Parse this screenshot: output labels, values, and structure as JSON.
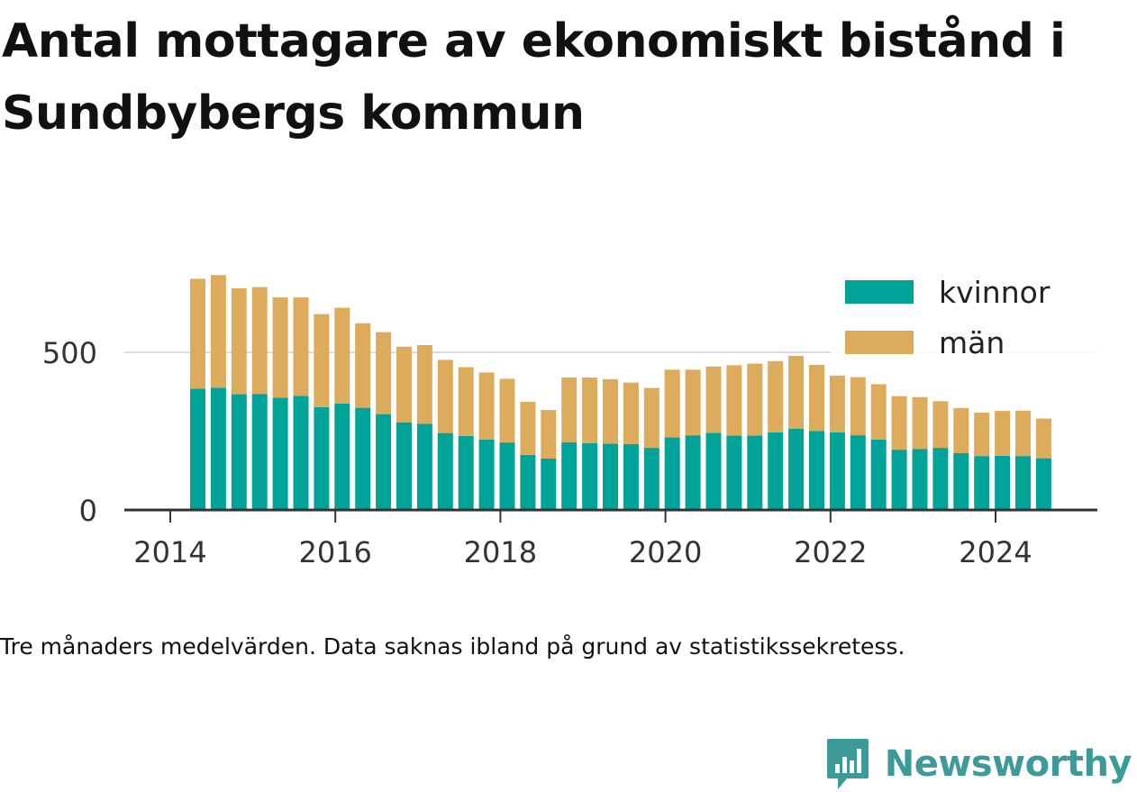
{
  "header": {
    "title": "Antal mottagare av ekonomiskt bistånd i Sundbybergs kommun"
  },
  "footer": {
    "caption": "Tre månaders medelvärden. Data saknas ibland på grund av statistikssekretess.",
    "brand": "Newsworthy"
  },
  "colors": {
    "kvinnor": "#00a398",
    "man": "#dcab5c",
    "axis": "#333333",
    "grid": "#dddddd",
    "brand": "#3d9a98"
  },
  "chart_data": {
    "type": "bar",
    "stacked": true,
    "x_tick_labels": [
      "2014",
      "2016",
      "2018",
      "2020",
      "2022",
      "2024"
    ],
    "y_tick_labels": [
      "0",
      "500"
    ],
    "y_gridlines": [
      500
    ],
    "ylim": [
      0,
      750
    ],
    "legend_position": "top-right",
    "categories": [
      "2014-05",
      "2014-08",
      "2014-11",
      "2015-02",
      "2015-05",
      "2015-08",
      "2015-11",
      "2016-02",
      "2016-05",
      "2016-08",
      "2016-11",
      "2017-02",
      "2017-05",
      "2017-08",
      "2017-11",
      "2018-02",
      "2018-05",
      "2018-08",
      "2018-11",
      "2019-02",
      "2019-05",
      "2019-08",
      "2019-11",
      "2020-02",
      "2020-05",
      "2020-08",
      "2020-11",
      "2021-02",
      "2021-05",
      "2021-08",
      "2021-11",
      "2022-02",
      "2022-05",
      "2022-08",
      "2022-11",
      "2023-02",
      "2023-05",
      "2023-08",
      "2023-11",
      "2024-02",
      "2024-05",
      "2024-08"
    ],
    "series": [
      {
        "name": "kvinnor",
        "values": [
          385,
          388,
          367,
          368,
          356,
          362,
          326,
          338,
          324,
          304,
          278,
          273,
          244,
          235,
          223,
          214,
          175,
          163,
          215,
          212,
          210,
          209,
          197,
          230,
          237,
          245,
          236,
          236,
          246,
          258,
          250,
          246,
          237,
          223,
          191,
          193,
          197,
          180,
          171,
          172,
          171,
          164
        ]
      },
      {
        "name": "män",
        "values": [
          348,
          357,
          336,
          339,
          318,
          312,
          295,
          303,
          268,
          260,
          240,
          250,
          232,
          218,
          213,
          202,
          168,
          154,
          205,
          208,
          205,
          195,
          190,
          215,
          208,
          210,
          223,
          228,
          226,
          231,
          210,
          180,
          184,
          176,
          170,
          165,
          148,
          143,
          138,
          142,
          144,
          126
        ]
      }
    ]
  }
}
